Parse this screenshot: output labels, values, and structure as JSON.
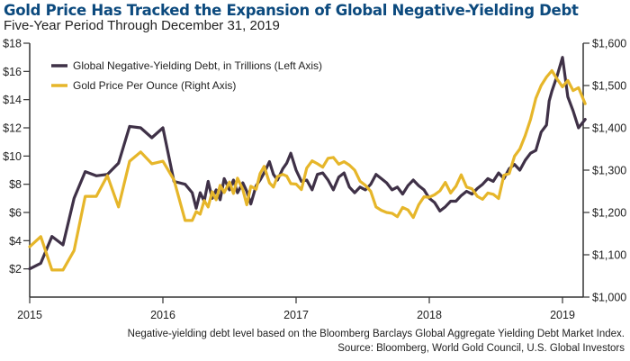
{
  "title": "Gold Price Has Tracked the Expansion of Global Negative-Yielding Debt",
  "subtitle": "Five-Year Period Through December 31, 2019",
  "footer": {
    "note": "Negative-yielding debt level based on the Bloomberg Barclays Global Aggregate Yielding Debt Market Index.",
    "source": "Source: Bloomberg, World Gold Council, U.S. Global Investors"
  },
  "chart_data": {
    "type": "line",
    "title": "Gold Price Has Tracked the Expansion of Global Negative-Yielding Debt",
    "subtitle": "Five-Year Period Through December 31, 2019",
    "xlabel": "",
    "ylabel_left": "",
    "ylabel_right": "",
    "x_ticks": [
      "2015",
      "2016",
      "2017",
      "2018",
      "2019"
    ],
    "x_tick_values": [
      2015,
      2016,
      2017,
      2018,
      2019
    ],
    "xlim": [
      2015,
      2019.17
    ],
    "y_left": {
      "lim": [
        0,
        18
      ],
      "ticks": [
        2,
        4,
        6,
        8,
        10,
        12,
        14,
        16,
        18
      ],
      "tick_labels": [
        "$2",
        "$4",
        "$6",
        "$8",
        "$10",
        "$12",
        "$14",
        "$16",
        "$18"
      ]
    },
    "y_right": {
      "lim": [
        1000,
        1600
      ],
      "ticks": [
        1000,
        1100,
        1200,
        1300,
        1400,
        1500,
        1600
      ],
      "tick_labels": [
        "$1,000",
        "$1,100",
        "$1,200",
        "$1,300",
        "$1,400",
        "$1,500",
        "$1,600"
      ]
    },
    "grid": false,
    "legend_position": "top-left",
    "series": [
      {
        "name": "Global Negative-Yielding Debt, in Trillions (Left Axis)",
        "axis": "left",
        "color": "#3f3147",
        "x": [
          2015.0,
          2015.083,
          2015.167,
          2015.25,
          2015.333,
          2015.417,
          2015.5,
          2015.583,
          2015.667,
          2015.75,
          2015.833,
          2015.917,
          2016.0,
          2016.083,
          2016.167,
          2016.22,
          2016.25,
          2016.28,
          2016.31,
          2016.34,
          2016.37,
          2016.4,
          2016.43,
          2016.46,
          2016.5,
          2016.53,
          2016.56,
          2016.6,
          2016.63,
          2016.66,
          2016.7,
          2016.73,
          2016.76,
          2016.8,
          2016.83,
          2016.86,
          2016.9,
          2016.93,
          2016.96,
          2017.0,
          2017.04,
          2017.08,
          2017.12,
          2017.16,
          2017.2,
          2017.24,
          2017.28,
          2017.32,
          2017.36,
          2017.4,
          2017.44,
          2017.48,
          2017.52,
          2017.56,
          2017.6,
          2017.64,
          2017.68,
          2017.72,
          2017.76,
          2017.8,
          2017.84,
          2017.88,
          2017.92,
          2017.96,
          2018.0,
          2018.04,
          2018.08,
          2018.12,
          2018.16,
          2018.2,
          2018.24,
          2018.28,
          2018.32,
          2018.36,
          2018.4,
          2018.44,
          2018.48,
          2018.52,
          2018.56,
          2018.6,
          2018.64,
          2018.68,
          2018.72,
          2018.76,
          2018.8,
          2018.84,
          2018.88,
          2018.9,
          2018.92,
          2018.96,
          2019.0,
          2019.04,
          2019.08,
          2019.12,
          2019.17
        ],
        "values": [
          2.0,
          2.4,
          4.3,
          3.7,
          7.0,
          8.9,
          8.6,
          8.7,
          9.5,
          12.1,
          12.0,
          11.3,
          12.0,
          8.2,
          8.0,
          7.4,
          6.3,
          7.4,
          6.8,
          8.2,
          7.0,
          7.6,
          6.9,
          8.4,
          7.6,
          8.3,
          7.4,
          8.1,
          7.5,
          6.6,
          7.9,
          8.3,
          8.8,
          9.6,
          8.7,
          8.3,
          9.1,
          9.5,
          10.2,
          9.0,
          8.2,
          8.3,
          7.6,
          8.7,
          8.8,
          8.3,
          7.6,
          8.5,
          8.8,
          7.8,
          7.4,
          7.8,
          7.6,
          8.0,
          8.7,
          8.4,
          8.1,
          7.6,
          7.8,
          7.3,
          7.9,
          8.3,
          7.9,
          7.6,
          7.0,
          6.7,
          6.1,
          6.4,
          6.8,
          6.8,
          7.2,
          7.5,
          7.3,
          7.7,
          8.0,
          8.4,
          8.2,
          8.8,
          8.4,
          9.1,
          9.4,
          9.0,
          9.7,
          10.2,
          10.4,
          11.7,
          12.2,
          13.9,
          14.6,
          15.7,
          17.0,
          14.2,
          13.2,
          12.0,
          12.6
        ]
      },
      {
        "name": "Gold Price Per Ounce (Right Axis)",
        "axis": "right",
        "color": "#e6b62a",
        "x": [
          2015.0,
          2015.083,
          2015.167,
          2015.25,
          2015.333,
          2015.417,
          2015.5,
          2015.583,
          2015.667,
          2015.75,
          2015.833,
          2015.917,
          2016.0,
          2016.083,
          2016.167,
          2016.2,
          2016.22,
          2016.25,
          2016.28,
          2016.31,
          2016.34,
          2016.37,
          2016.4,
          2016.43,
          2016.46,
          2016.5,
          2016.53,
          2016.56,
          2016.6,
          2016.63,
          2016.66,
          2016.7,
          2016.73,
          2016.76,
          2016.8,
          2016.83,
          2016.86,
          2016.9,
          2016.93,
          2016.96,
          2017.0,
          2017.04,
          2017.08,
          2017.12,
          2017.16,
          2017.2,
          2017.24,
          2017.28,
          2017.32,
          2017.36,
          2017.4,
          2017.44,
          2017.48,
          2017.52,
          2017.56,
          2017.6,
          2017.64,
          2017.68,
          2017.72,
          2017.76,
          2017.8,
          2017.84,
          2017.88,
          2017.92,
          2017.96,
          2018.0,
          2018.04,
          2018.08,
          2018.12,
          2018.16,
          2018.2,
          2018.24,
          2018.28,
          2018.32,
          2018.36,
          2018.4,
          2018.44,
          2018.48,
          2018.52,
          2018.56,
          2018.6,
          2018.64,
          2018.68,
          2018.72,
          2018.76,
          2018.8,
          2018.84,
          2018.88,
          2018.92,
          2018.96,
          2019.0,
          2019.04,
          2019.08,
          2019.12,
          2019.17
        ],
        "values": [
          1119,
          1143,
          1064,
          1064,
          1110,
          1238,
          1238,
          1287,
          1213,
          1321,
          1343,
          1315,
          1321,
          1277,
          1181,
          1181,
          1181,
          1202,
          1196,
          1228,
          1213,
          1249,
          1230,
          1264,
          1247,
          1272,
          1245,
          1281,
          1254,
          1218,
          1262,
          1255,
          1292,
          1309,
          1270,
          1260,
          1285,
          1290,
          1286,
          1268,
          1267,
          1254,
          1305,
          1322,
          1315,
          1307,
          1328,
          1330,
          1314,
          1320,
          1312,
          1300,
          1274,
          1264,
          1250,
          1213,
          1205,
          1200,
          1198,
          1190,
          1212,
          1206,
          1188,
          1218,
          1237,
          1236,
          1242,
          1251,
          1271,
          1246,
          1262,
          1289,
          1260,
          1256,
          1238,
          1231,
          1246,
          1243,
          1233,
          1288,
          1292,
          1333,
          1350,
          1382,
          1420,
          1470,
          1500,
          1520,
          1535,
          1515,
          1497,
          1512,
          1488,
          1495,
          1457
        ]
      }
    ]
  }
}
